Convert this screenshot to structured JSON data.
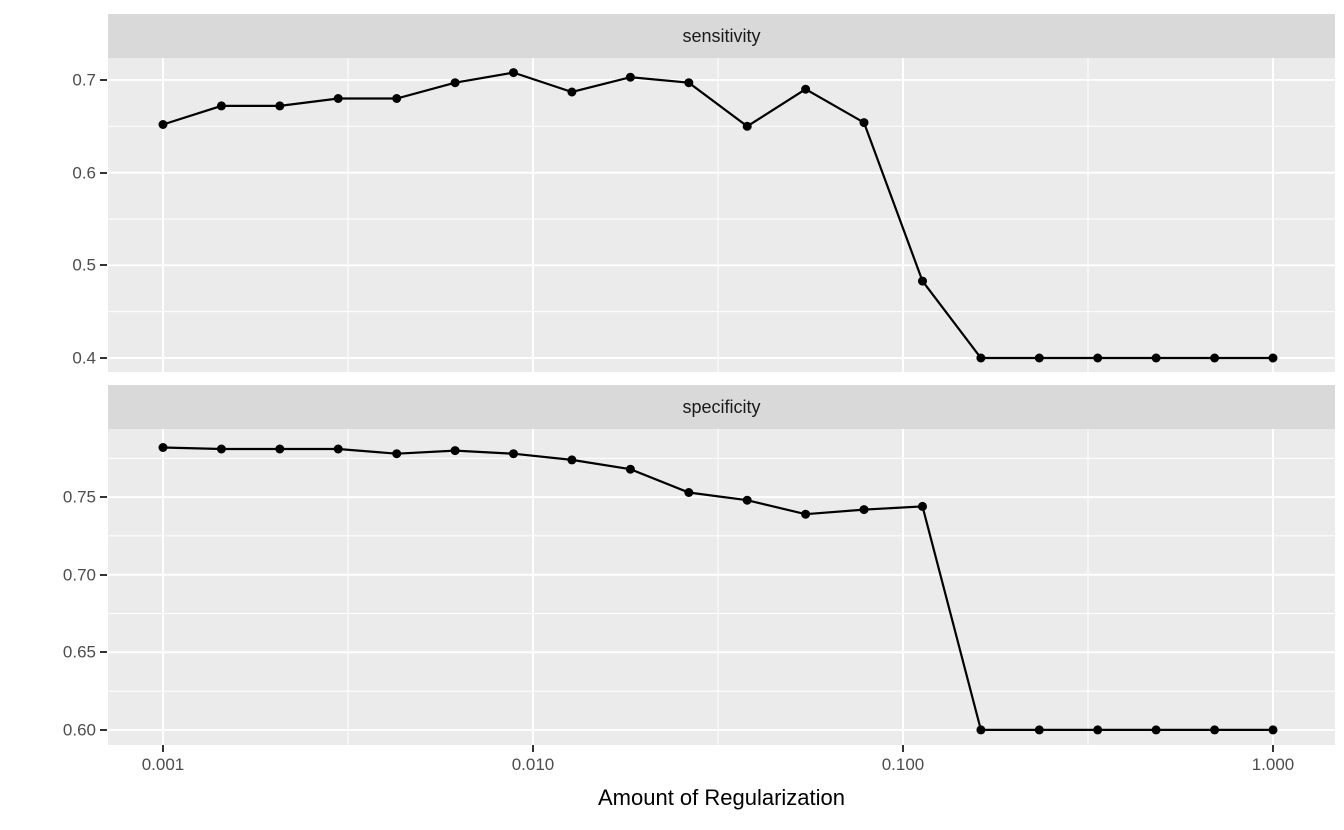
{
  "chart": {
    "x_axis": {
      "label": "Amount of Regularization",
      "scale": "log10",
      "ticks": [
        0.001,
        0.01,
        0.1,
        1.0
      ],
      "tick_labels": [
        "0.001",
        "0.010",
        "0.100",
        "1.000"
      ],
      "minor_ticks": [
        0.0031623,
        0.031623,
        0.31623
      ],
      "range_log10": [
        -3.1486,
        0.1676
      ]
    },
    "facets": [
      {
        "label": "sensitivity",
        "y_ticks": [
          0.4,
          0.5,
          0.6,
          0.7
        ],
        "y_tick_labels": [
          "0.4",
          "0.5",
          "0.6",
          "0.7"
        ],
        "y_minor": [
          0.45,
          0.55,
          0.65
        ],
        "y_range": [
          0.3849,
          0.7237
        ]
      },
      {
        "label": "specificity",
        "y_ticks": [
          0.6,
          0.65,
          0.7,
          0.75
        ],
        "y_tick_labels": [
          "0.60",
          "0.65",
          "0.70",
          "0.75"
        ],
        "y_minor": [
          0.625,
          0.675,
          0.725,
          0.775
        ],
        "y_range": [
          0.5903,
          0.7939
        ]
      }
    ]
  },
  "chart_data": {
    "type": "line",
    "x_scale": "log10",
    "x": [
      0.001,
      0.001438,
      0.002069,
      0.002976,
      0.004281,
      0.006158,
      0.008859,
      0.012743,
      0.01833,
      0.026367,
      0.037927,
      0.054556,
      0.078476,
      0.112884,
      0.162378,
      0.233572,
      0.335982,
      0.483293,
      0.695193,
      1.0
    ],
    "series": [
      {
        "name": "sensitivity",
        "values": [
          0.652,
          0.672,
          0.672,
          0.68,
          0.68,
          0.697,
          0.708,
          0.687,
          0.703,
          0.697,
          0.65,
          0.69,
          0.654,
          0.483,
          0.4,
          0.4,
          0.4,
          0.4,
          0.4,
          0.4
        ]
      },
      {
        "name": "specificity",
        "values": [
          0.782,
          0.781,
          0.781,
          0.781,
          0.778,
          0.78,
          0.778,
          0.774,
          0.768,
          0.753,
          0.748,
          0.739,
          0.742,
          0.744,
          0.6,
          0.6,
          0.6,
          0.6,
          0.6,
          0.6
        ]
      }
    ],
    "title": "",
    "xlabel": "Amount of Regularization",
    "ylabel": "",
    "grid": true,
    "legend": false,
    "marker": "point"
  },
  "style": {
    "strip_bg": "#d9d9d9",
    "panel_bg": "#ebebeb",
    "grid_color": "#ffffff",
    "line_color": "#000000",
    "point_color": "#000000",
    "axis_text_color": "#4d4d4d",
    "axis_title_color": "#000000",
    "tick_mark_color": "#333333",
    "background": "#ffffff"
  }
}
